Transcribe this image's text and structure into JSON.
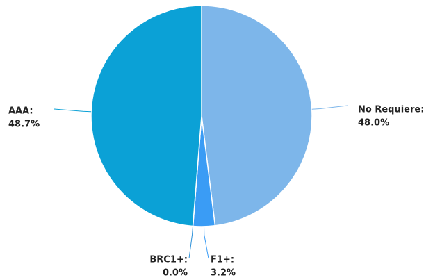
{
  "chart_data": {
    "type": "pie",
    "categories": [
      "No Requiere:",
      "F1+:",
      "BRC1+:",
      "AAA:"
    ],
    "values": [
      48.0,
      3.2,
      0.0,
      48.7
    ],
    "value_labels": [
      "48.0%",
      "3.2%",
      "0.0%",
      "48.7%"
    ],
    "colors": [
      "#7db6ea",
      "#3a9cf5",
      "#2a8fd8",
      "#0ba1d6"
    ]
  }
}
